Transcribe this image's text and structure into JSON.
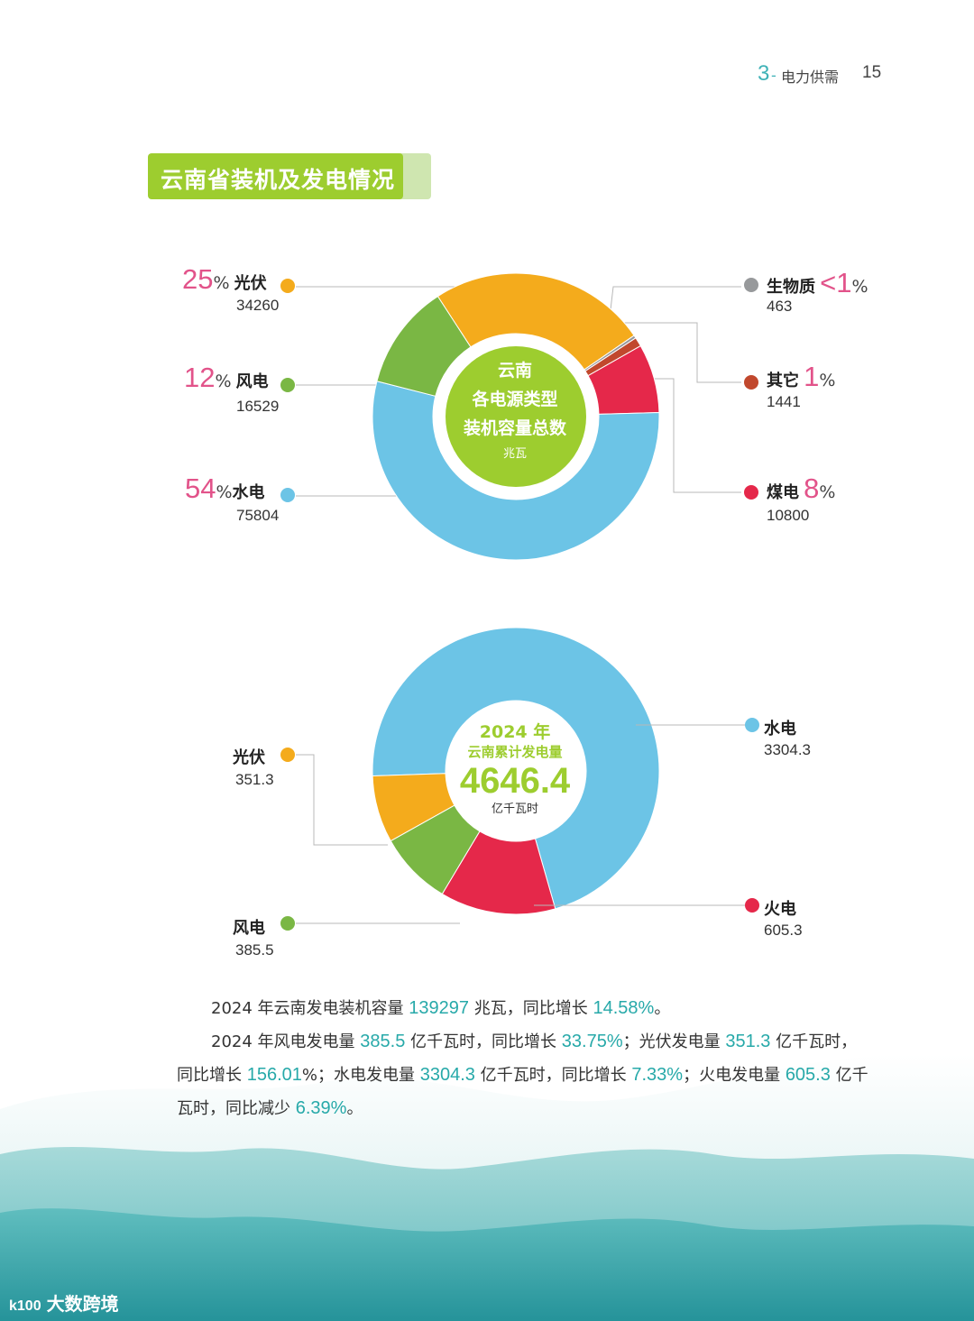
{
  "header": {
    "chapter_num": "3",
    "chapter_dash": "-",
    "chapter_title": "电力供需",
    "page_num": "15"
  },
  "section_title": "云南省装机及发电情况",
  "colors": {
    "solar": "#f4ab1c",
    "wind": "#7ab744",
    "hydro": "#6cc4e6",
    "coal": "#e5284a",
    "other": "#c1482d",
    "biomass": "#97999b",
    "center_green": "#9dcd2f",
    "pct_pink": "#e2538a",
    "highlight_teal": "#27a9a9"
  },
  "chart_data": [
    {
      "type": "pie",
      "center_text": [
        "云南",
        "各电源类型",
        "装机容量总数"
      ],
      "unit": "兆瓦",
      "slices": [
        {
          "name": "光伏",
          "value": 34260,
          "percent": "25",
          "color": "#f4ab1c"
        },
        {
          "name": "生物质",
          "value": 463,
          "percent": "<1",
          "color": "#97999b"
        },
        {
          "name": "其它",
          "value": 1441,
          "percent": "1",
          "color": "#c1482d"
        },
        {
          "name": "煤电",
          "value": 10800,
          "percent": "8",
          "color": "#e5284a"
        },
        {
          "name": "水电",
          "value": 75804,
          "percent": "54",
          "color": "#6cc4e6"
        },
        {
          "name": "风电",
          "value": 16529,
          "percent": "12",
          "color": "#7ab744"
        }
      ]
    },
    {
      "type": "pie",
      "center_year": "2024 年",
      "center_sub": "云南累计发电量",
      "total": "4646.4",
      "unit": "亿千瓦时",
      "slices": [
        {
          "name": "水电",
          "value": 3304.3,
          "color": "#6cc4e6"
        },
        {
          "name": "火电",
          "value": 605.3,
          "color": "#e5284a"
        },
        {
          "name": "风电",
          "value": 385.5,
          "color": "#7ab744"
        },
        {
          "name": "光伏",
          "value": 351.3,
          "color": "#f4ab1c"
        }
      ]
    }
  ],
  "chart1_labels": {
    "solar": {
      "pct": "25",
      "pctsym": "%",
      "name": "光伏",
      "val": "34260"
    },
    "wind": {
      "pct": "12",
      "pctsym": "%",
      "name": "风电",
      "val": "16529"
    },
    "hydro": {
      "pct": "54",
      "pctsym": "%",
      "name": "水电",
      "val": "75804"
    },
    "biomass": {
      "pct": "<1",
      "pctsym": "%",
      "name": "生物质",
      "val": "463"
    },
    "other": {
      "pct": "1",
      "pctsym": "%",
      "name": "其它",
      "val": "1441"
    },
    "coal": {
      "pct": "8",
      "pctsym": "%",
      "name": "煤电",
      "val": "10800"
    }
  },
  "chart2_labels": {
    "solar": {
      "name": "光伏",
      "val": "351.3"
    },
    "wind": {
      "name": "风电",
      "val": "385.5"
    },
    "hydro": {
      "name": "水电",
      "val": "3304.3"
    },
    "thermal": {
      "name": "火电",
      "val": "605.3"
    }
  },
  "paragraphs": {
    "p1": {
      "t1": "2024 年云南发电装机容量 ",
      "v1": "139297",
      "t2": " 兆瓦，同比增长 ",
      "v2": "14.58%",
      "t3": "。"
    },
    "p2": {
      "t1": "2024 年风电发电量 ",
      "v1": "385.5",
      "t2": " 亿千瓦时，同比增长 ",
      "v2": "33.75%",
      "t3": "；光伏发电量 ",
      "v3": "351.3",
      "t4": " 亿千瓦时，同比增长 ",
      "v4": "156.01",
      "t5": "%；水电发电量 ",
      "v5": "3304.3",
      "t6": " 亿千瓦时，同比增长 ",
      "v6": "7.33%",
      "t7": "；火电发电量 ",
      "v7": "605.3",
      "t8": " 亿千瓦时，同比减少 ",
      "v8": "6.39%",
      "t9": "。"
    }
  },
  "watermark": {
    "logo": "k100",
    "text": "大数跨境"
  }
}
